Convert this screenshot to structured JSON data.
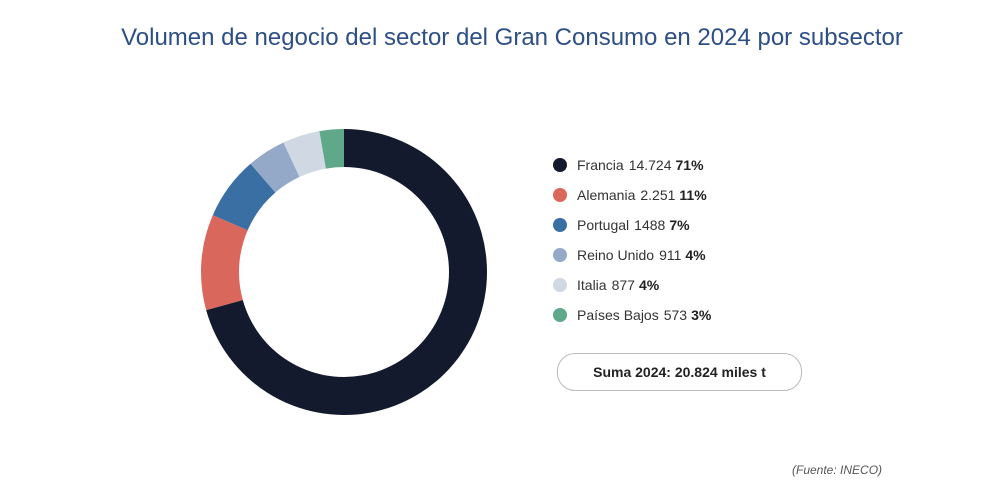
{
  "chart_data": {
    "type": "donut",
    "title": "Volumen de negocio del sector del Gran Consumo en 2024 por subsector",
    "categories": [
      "Francia",
      "Alemania",
      "Portugal",
      "Reino Unido",
      "Italia",
      "Países Bajos"
    ],
    "values": [
      14724,
      2251,
      1488,
      911,
      877,
      573
    ],
    "value_labels": [
      "14.724",
      "2.251",
      "1488",
      "911",
      "877",
      "573"
    ],
    "shares": [
      71,
      11,
      7,
      4,
      4,
      3
    ],
    "share_labels": [
      "71%",
      "11%",
      "7%",
      "4%",
      "4%",
      "3%"
    ],
    "colors": [
      "#141a2e",
      "#d9675c",
      "#3a6fa3",
      "#94a8c8",
      "#cfd8e3",
      "#5fa88a"
    ],
    "total_label": "Suma 2024: 20.824 miles t",
    "source": "(Fuente: INECO)"
  }
}
